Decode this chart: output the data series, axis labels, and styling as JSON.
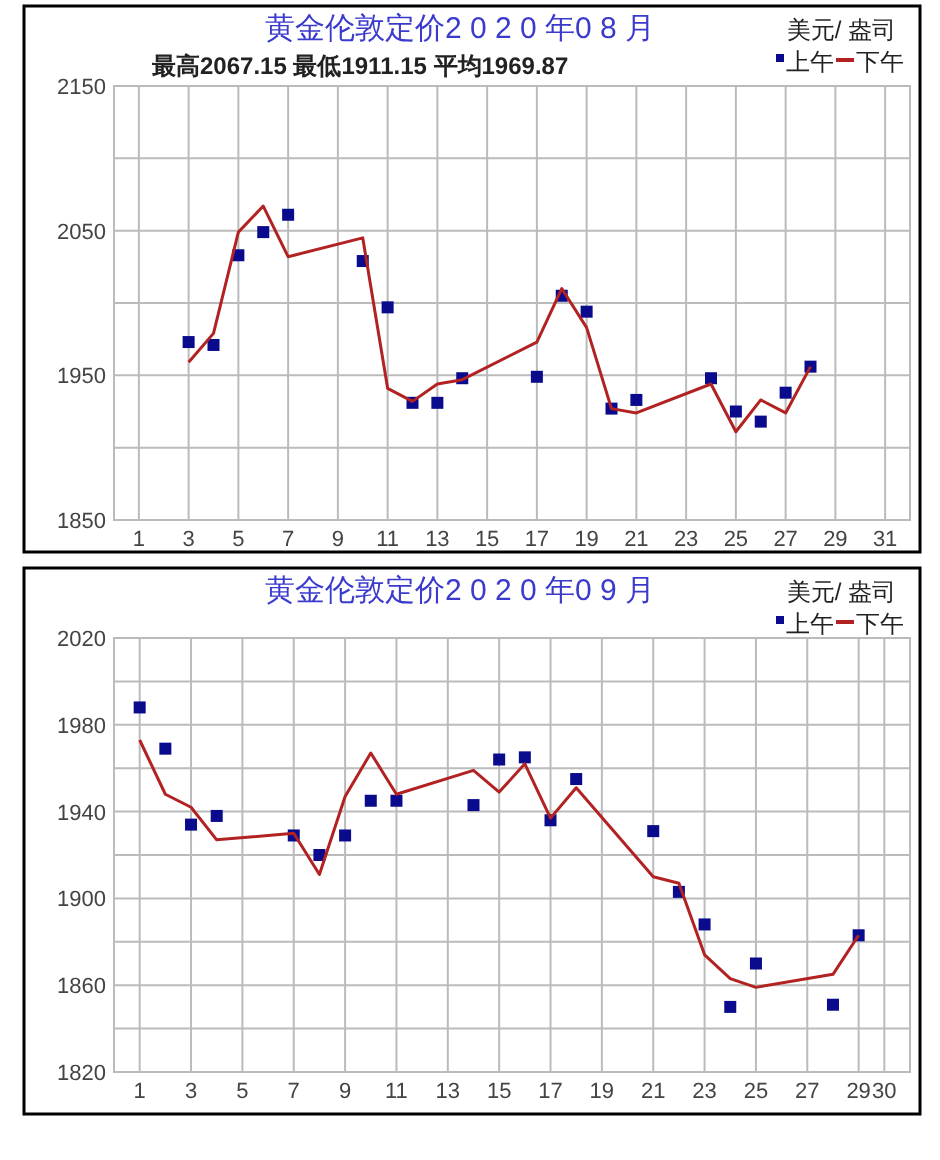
{
  "chart_data": [
    {
      "type": "line",
      "title": "黄金伦敦定价2 0 2 0 年0 8 月",
      "subtitle": "最高2067.15   最低1911.15   平均1969.87",
      "ylabel": "美元/ 盎司",
      "legend": "top right",
      "grid": true,
      "xlim": [
        0,
        32
      ],
      "xticks": [
        1,
        3,
        5,
        7,
        9,
        11,
        13,
        15,
        17,
        19,
        21,
        23,
        25,
        27,
        29,
        31
      ],
      "ylim": [
        1850,
        2150
      ],
      "yticks": [
        1850,
        {
          "value": 1900,
          "label": null
        },
        1950,
        {
          "value": 2000,
          "label": null
        },
        2050,
        {
          "value": 2100,
          "label": null
        },
        2150
      ],
      "series": [
        {
          "name": "上午",
          "type": "scatter",
          "marker": "square",
          "color": "#0a0a8c",
          "x": [
            3,
            4,
            5,
            6,
            7,
            10,
            11,
            12,
            13,
            14,
            17,
            18,
            19,
            20,
            21,
            24,
            25,
            26,
            27,
            28
          ],
          "values": [
            1973,
            1971,
            2033,
            2049,
            2061,
            2029,
            1997,
            1931,
            1931,
            1948,
            1949,
            2005,
            1994,
            1927,
            1933,
            1948,
            1925,
            1918,
            1938,
            1956
          ]
        },
        {
          "name": "下午",
          "type": "line",
          "marker": "none",
          "color": "#b22222",
          "x": [
            3,
            4,
            5,
            6,
            7,
            10,
            11,
            12,
            13,
            14,
            17,
            18,
            19,
            20,
            21,
            24,
            25,
            26,
            27,
            28
          ],
          "values": [
            1959,
            1979,
            2049,
            2067,
            2032,
            2045,
            1941,
            1932,
            1944,
            1947,
            1973,
            2010,
            1983,
            1927,
            1924,
            1944,
            1911,
            1933,
            1924,
            1956
          ]
        }
      ]
    },
    {
      "type": "line",
      "title": "黄金伦敦定价2 0 2 0 年0 9 月",
      "ylabel": "美元/ 盎司",
      "legend": "top right",
      "grid": true,
      "xlim": [
        0,
        31
      ],
      "xticks": [
        1,
        3,
        5,
        7,
        9,
        11,
        13,
        15,
        17,
        19,
        21,
        23,
        25,
        27,
        29,
        30
      ],
      "ylim": [
        1820,
        2020
      ],
      "yticks": [
        1820,
        {
          "value": 1840,
          "label": null
        },
        1860,
        {
          "value": 1880,
          "label": null
        },
        1900,
        {
          "value": 1920,
          "label": null
        },
        1940,
        {
          "value": 1960,
          "label": null
        },
        1980,
        {
          "value": 2000,
          "label": null
        },
        2020
      ],
      "series": [
        {
          "name": "上午",
          "type": "scatter",
          "marker": "square",
          "color": "#0a0a8c",
          "x": [
            1,
            2,
            3,
            4,
            7,
            8,
            9,
            10,
            11,
            14,
            15,
            16,
            17,
            18,
            21,
            22,
            23,
            24,
            25,
            28,
            29
          ],
          "values": [
            1988,
            1969,
            1934,
            1938,
            1929,
            1920,
            1929,
            1945,
            1945,
            1943,
            1964,
            1965,
            1936,
            1955,
            1931,
            1903,
            1888,
            1850,
            1870,
            1851,
            1883
          ]
        },
        {
          "name": "下午",
          "type": "line",
          "marker": "none",
          "color": "#b22222",
          "x": [
            1,
            2,
            3,
            4,
            7,
            8,
            9,
            10,
            11,
            14,
            15,
            16,
            17,
            18,
            21,
            22,
            23,
            24,
            25,
            28,
            29
          ],
          "values": [
            1973,
            1948,
            1942,
            1927,
            1930,
            1911,
            1947,
            1967,
            1948,
            1959,
            1949,
            1962,
            1937,
            1951,
            1910,
            1907,
            1874,
            1863,
            1859,
            1865,
            1883
          ]
        }
      ]
    }
  ]
}
